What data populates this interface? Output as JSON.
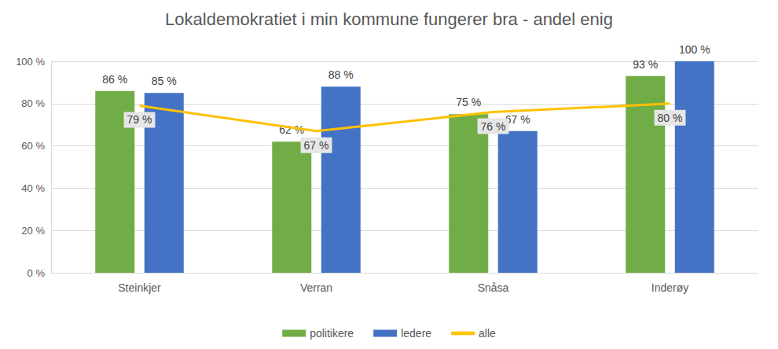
{
  "chart_data": {
    "type": "bar",
    "title": "Lokaldemokratiet i min kommune fungerer bra - andel enig",
    "categories": [
      "Steinkjer",
      "Verran",
      "Snåsa",
      "Inderøy"
    ],
    "series": [
      {
        "name": "politikere",
        "type": "bar",
        "color": "#70ad47",
        "values": [
          86,
          62,
          75,
          93
        ],
        "value_labels": [
          "86 %",
          "62 %",
          "75 %",
          "93 %"
        ]
      },
      {
        "name": "ledere",
        "type": "bar",
        "color": "#4472c4",
        "values": [
          85,
          88,
          67,
          100
        ],
        "value_labels": [
          "85 %",
          "88 %",
          "67 %",
          "100 %"
        ]
      },
      {
        "name": "alle",
        "type": "line",
        "color": "#ffc000",
        "values": [
          79,
          67,
          76,
          80
        ],
        "value_labels": [
          "79 %",
          "67 %",
          "76 %",
          "80 %"
        ]
      }
    ],
    "ylim": [
      0,
      100
    ],
    "yticks": [
      {
        "value": 0,
        "label": "0 %"
      },
      {
        "value": 20,
        "label": "20 %"
      },
      {
        "value": 40,
        "label": "40 %"
      },
      {
        "value": 60,
        "label": "60 %"
      },
      {
        "value": 80,
        "label": "80 %"
      },
      {
        "value": 100,
        "label": "100 %"
      }
    ],
    "grid": true,
    "legend": "bottom",
    "data_labels": true
  }
}
